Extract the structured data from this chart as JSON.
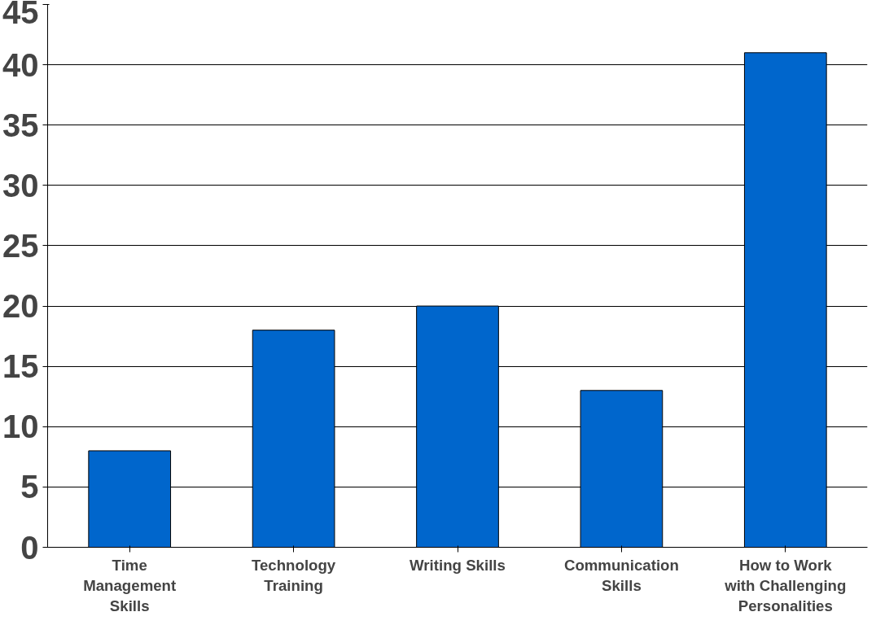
{
  "chart_data": {
    "type": "bar",
    "categories": [
      "Time\nManagement\nSkills",
      "Technology\nTraining",
      "Writing Skills",
      "Communication\nSkills",
      "How to Work\nwith Challenging\nPersonalities"
    ],
    "values": [
      8,
      18,
      20,
      13,
      41
    ],
    "color": "#0066cc",
    "ylim": [
      0,
      45
    ],
    "yticks": [
      0,
      5,
      10,
      15,
      20,
      25,
      30,
      35,
      40,
      45
    ],
    "grid": "y"
  }
}
